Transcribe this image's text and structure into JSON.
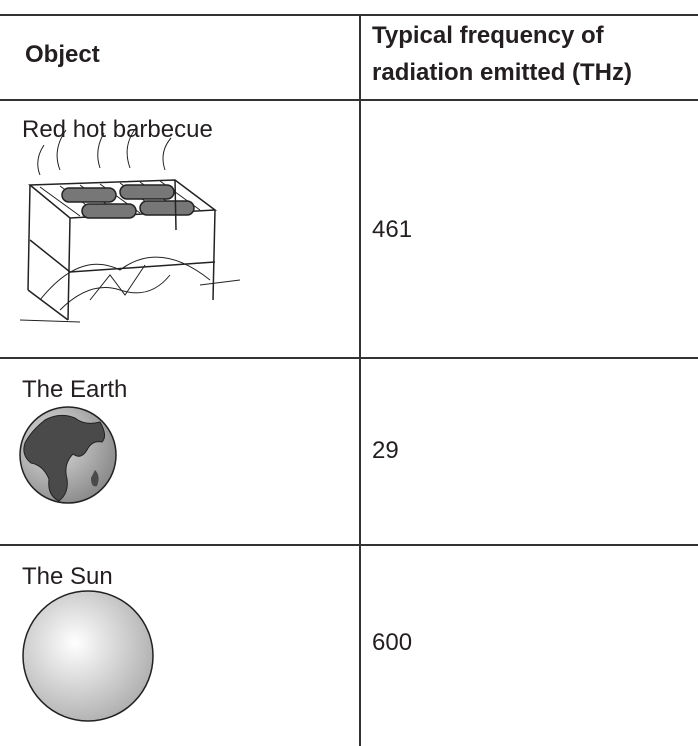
{
  "header": {
    "columns": [
      "Object",
      "Typical frequency of radiation emitted (THz)"
    ]
  },
  "table": {
    "rows": [
      [
        "Red hot barbecue",
        461
      ],
      [
        "The Earth",
        29
      ],
      [
        "The Sun",
        600
      ]
    ]
  }
}
